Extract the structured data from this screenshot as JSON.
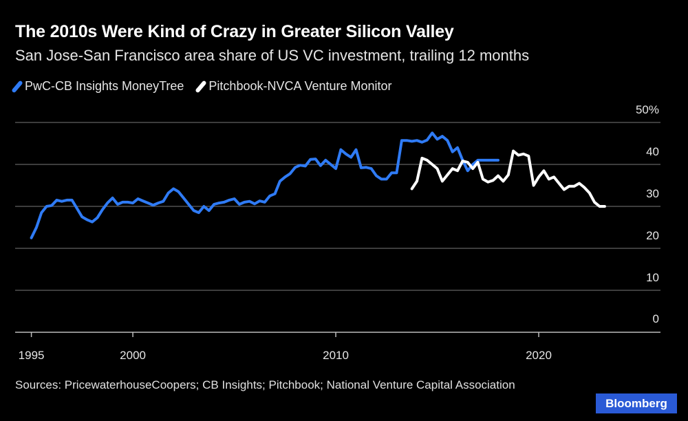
{
  "chart_data": {
    "type": "line",
    "title": "The 2010s Were Kind of Crazy in Greater Silicon Valley",
    "subtitle": "San Jose-San Francisco area share of US VC investment, trailing 12 months",
    "xlabel": "",
    "ylabel": "",
    "xlim": [
      1994.2,
      2026.0
    ],
    "ylim": [
      0,
      50
    ],
    "x_ticks": [
      1995,
      2000,
      2010,
      2020
    ],
    "x_tick_labels": [
      "1995",
      "2000",
      "2010",
      "2020"
    ],
    "y_ticks": [
      0,
      10,
      20,
      30,
      40,
      50
    ],
    "y_tick_labels": [
      "0",
      "10",
      "20",
      "30",
      "40",
      "50%"
    ],
    "grid": true,
    "legend_position": "top-left",
    "series": [
      {
        "name": "PwC-CB Insights MoneyTree",
        "color": "#2f7bf5",
        "x": [
          1995.0,
          1995.25,
          1995.5,
          1995.75,
          1996.0,
          1996.25,
          1996.5,
          1996.75,
          1997.0,
          1997.25,
          1997.5,
          1997.75,
          1998.0,
          1998.25,
          1998.5,
          1998.75,
          1999.0,
          1999.25,
          1999.5,
          1999.75,
          2000.0,
          2000.25,
          2000.5,
          2000.75,
          2001.0,
          2001.25,
          2001.5,
          2001.75,
          2002.0,
          2002.25,
          2002.5,
          2002.75,
          2003.0,
          2003.25,
          2003.5,
          2003.75,
          2004.0,
          2004.25,
          2004.5,
          2004.75,
          2005.0,
          2005.25,
          2005.5,
          2005.75,
          2006.0,
          2006.25,
          2006.5,
          2006.75,
          2007.0,
          2007.25,
          2007.5,
          2007.75,
          2008.0,
          2008.25,
          2008.5,
          2008.75,
          2009.0,
          2009.25,
          2009.5,
          2009.75,
          2010.0,
          2010.25,
          2010.5,
          2010.75,
          2011.0,
          2011.25,
          2011.5,
          2011.75,
          2012.0,
          2012.25,
          2012.5,
          2012.75,
          2013.0,
          2013.25,
          2013.5,
          2013.75,
          2014.0,
          2014.25,
          2014.5,
          2014.75,
          2015.0,
          2015.25,
          2015.5,
          2015.75,
          2016.0,
          2016.25,
          2016.5,
          2016.75,
          2017.0,
          2017.25,
          2017.5,
          2017.75,
          2018.0
        ],
        "values": [
          22.5,
          25.0,
          28.5,
          30.0,
          30.2,
          31.5,
          31.2,
          31.5,
          31.5,
          29.5,
          27.5,
          26.8,
          26.3,
          27.3,
          29.2,
          30.8,
          32.0,
          30.5,
          31.0,
          31.0,
          30.8,
          31.8,
          31.3,
          30.8,
          30.3,
          30.8,
          31.2,
          33.2,
          34.2,
          33.5,
          32.0,
          30.5,
          29.0,
          28.5,
          30.0,
          29.0,
          30.5,
          30.8,
          31.0,
          31.5,
          31.8,
          30.5,
          31.0,
          31.2,
          30.6,
          31.3,
          31.0,
          32.5,
          33.0,
          36.0,
          37.0,
          37.8,
          39.3,
          39.8,
          39.6,
          41.2,
          41.3,
          39.7,
          41.0,
          40.0,
          39.0,
          43.5,
          42.5,
          41.7,
          43.5,
          39.2,
          39.3,
          39.0,
          37.3,
          36.5,
          36.5,
          38.0,
          38.0,
          45.7,
          45.7,
          45.5,
          45.7,
          45.3,
          45.8,
          47.5,
          46.0,
          46.7,
          45.7,
          43.0,
          44.0,
          41.0,
          38.5,
          40.0,
          41.0,
          41.0,
          41.0,
          41.0,
          41.0
        ]
      },
      {
        "name": "Pitchbook-NVCA Venture Monitor",
        "color": "#ffffff",
        "x": [
          2013.75,
          2014.0,
          2014.25,
          2014.5,
          2014.75,
          2015.0,
          2015.25,
          2015.5,
          2015.75,
          2016.0,
          2016.25,
          2016.5,
          2016.75,
          2017.0,
          2017.25,
          2017.5,
          2017.75,
          2018.0,
          2018.25,
          2018.5,
          2018.75,
          2019.0,
          2019.25,
          2019.5,
          2019.75,
          2020.0,
          2020.25,
          2020.5,
          2020.75,
          2021.0,
          2021.25,
          2021.5,
          2021.75,
          2022.0,
          2022.25,
          2022.5,
          2022.75,
          2023.0,
          2023.25
        ],
        "values": [
          34.2,
          36.0,
          41.5,
          41.0,
          40.0,
          39.0,
          36.0,
          37.5,
          39.0,
          38.5,
          40.8,
          40.5,
          39.0,
          40.5,
          36.5,
          35.8,
          36.2,
          37.3,
          36.0,
          37.5,
          43.2,
          42.2,
          42.5,
          42.0,
          35.0,
          37.0,
          38.5,
          36.5,
          37.0,
          35.5,
          34.0,
          34.8,
          34.8,
          35.5,
          34.5,
          33.2,
          31.0,
          30.0,
          30.0
        ]
      }
    ],
    "annotations": []
  },
  "source_text": "Sources: PricewaterhouseCoopers; CB Insights; Pitchbook; National Venture Capital Association",
  "brand": "Bloomberg"
}
